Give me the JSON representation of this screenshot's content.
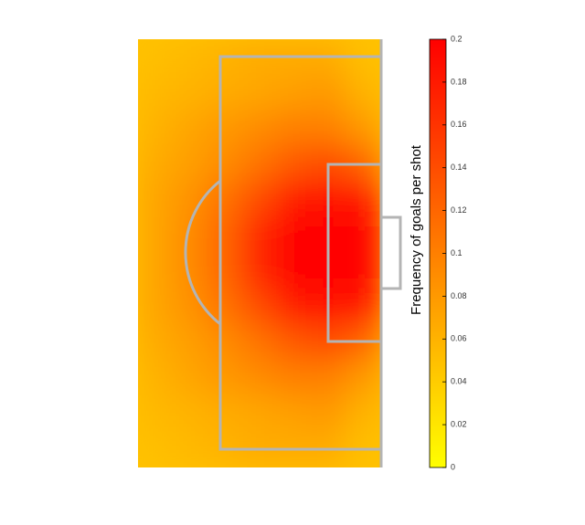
{
  "chart_data": {
    "type": "heatmap",
    "colorbar_label": "Frequency of goals per shot",
    "colors": [
      "#ffff00",
      "#ff0000"
    ],
    "clim": [
      0,
      0.2
    ],
    "cticks": [
      0,
      0.02,
      0.04,
      0.06,
      0.08,
      0.1,
      0.12,
      0.14,
      0.16,
      0.18,
      0.2
    ],
    "values": [
      [
        0.05,
        0.055,
        0.06,
        0.065,
        0.065,
        0.065,
        0.05
      ],
      [
        0.055,
        0.06,
        0.065,
        0.07,
        0.075,
        0.08,
        0.06
      ],
      [
        0.06,
        0.07,
        0.08,
        0.09,
        0.1,
        0.1,
        0.08
      ],
      [
        0.065,
        0.075,
        0.09,
        0.11,
        0.13,
        0.14,
        0.12
      ],
      [
        0.07,
        0.085,
        0.11,
        0.14,
        0.18,
        0.19,
        0.18
      ],
      [
        0.07,
        0.09,
        0.12,
        0.17,
        0.2,
        0.2,
        0.2
      ],
      [
        0.07,
        0.09,
        0.12,
        0.17,
        0.2,
        0.2,
        0.2
      ],
      [
        0.07,
        0.085,
        0.11,
        0.14,
        0.18,
        0.19,
        0.18
      ],
      [
        0.065,
        0.075,
        0.09,
        0.11,
        0.13,
        0.14,
        0.12
      ],
      [
        0.06,
        0.07,
        0.08,
        0.09,
        0.1,
        0.1,
        0.08
      ],
      [
        0.055,
        0.06,
        0.065,
        0.07,
        0.075,
        0.08,
        0.06
      ],
      [
        0.05,
        0.055,
        0.06,
        0.065,
        0.065,
        0.065,
        0.05
      ]
    ]
  }
}
